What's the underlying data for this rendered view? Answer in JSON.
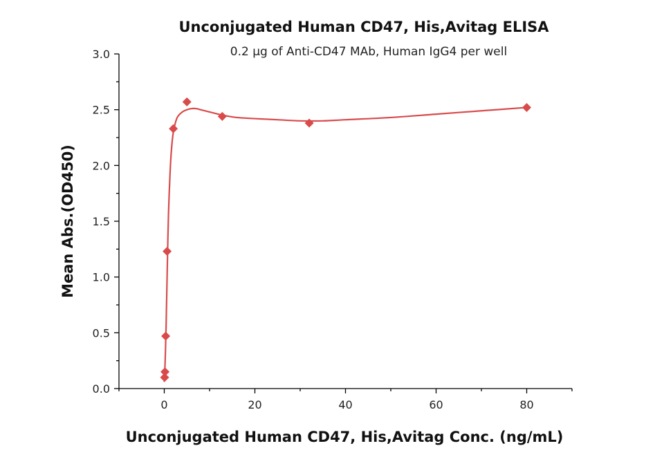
{
  "chart_data": {
    "type": "scatter",
    "title": "Unconjugated Human CD47, His,Avitag ELISA",
    "subtitle": "0.2 μg of Anti-CD47 MAb, Human IgG4 per well",
    "xlabel": "Unconjugated Human CD47, His,Avitag Conc. (ng/mL)",
    "ylabel": "Mean Abs.(OD450)",
    "xlim": [
      -10,
      90
    ],
    "ylim": [
      0,
      3.0
    ],
    "x_ticks": [
      0,
      20,
      40,
      60,
      80
    ],
    "x_tick_labels": [
      "0",
      "20",
      "40",
      "60",
      "80"
    ],
    "y_ticks": [
      0,
      0.5,
      1.0,
      1.5,
      2.0,
      2.5,
      3.0
    ],
    "y_tick_labels": [
      "0.0",
      "0.5",
      "1.0",
      "1.5",
      "2.0",
      "2.5",
      "3.0"
    ],
    "series": [
      {
        "name": "Mean Abs.",
        "color": "#d94a4a",
        "marker": "diamond",
        "x": [
          0.078,
          0.156,
          0.313,
          0.625,
          2.0,
          5.0,
          12.8,
          32.0,
          80.0
        ],
        "y": [
          0.1,
          0.15,
          0.47,
          1.23,
          2.33,
          2.57,
          2.44,
          2.38,
          2.52
        ]
      }
    ],
    "fit_curve": {
      "color": "#d94a4a",
      "x": [
        0,
        0.2,
        0.4,
        0.6,
        0.8,
        1.0,
        1.3,
        1.6,
        2.0,
        2.5,
        3.0,
        4.0,
        5.0,
        6.0,
        7.0,
        8.0,
        10,
        13,
        16,
        20,
        25,
        30,
        35,
        40,
        50,
        60,
        70,
        80
      ],
      "y": [
        0.06,
        0.25,
        0.55,
        0.95,
        1.35,
        1.65,
        1.95,
        2.15,
        2.3,
        2.39,
        2.44,
        2.48,
        2.5,
        2.51,
        2.51,
        2.5,
        2.48,
        2.45,
        2.43,
        2.42,
        2.41,
        2.4,
        2.4,
        2.41,
        2.43,
        2.46,
        2.49,
        2.52
      ]
    }
  }
}
